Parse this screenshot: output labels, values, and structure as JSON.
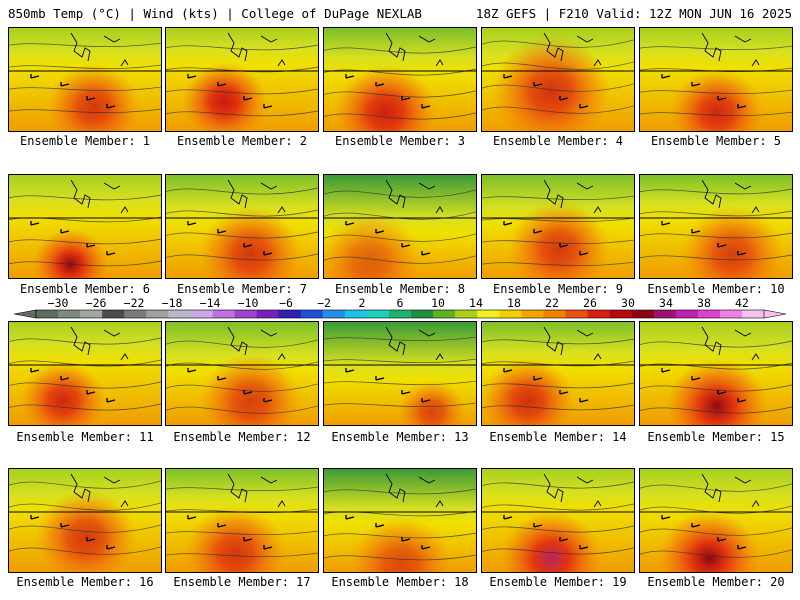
{
  "header": {
    "left": "850mb Temp (°C) | Wind (kts) | College of DuPage NEXLAB",
    "right": "18Z GEFS | F210 Valid: 12Z MON JUN 16 2025"
  },
  "chart_data": {
    "type": "heatmap",
    "panel_label_prefix": "Ensemble Member:",
    "members": [
      {
        "id": 1,
        "label": "Ensemble Member: 1"
      },
      {
        "id": 2,
        "label": "Ensemble Member: 2"
      },
      {
        "id": 3,
        "label": "Ensemble Member: 3"
      },
      {
        "id": 4,
        "label": "Ensemble Member: 4"
      },
      {
        "id": 5,
        "label": "Ensemble Member: 5"
      },
      {
        "id": 6,
        "label": "Ensemble Member: 6"
      },
      {
        "id": 7,
        "label": "Ensemble Member: 7"
      },
      {
        "id": 8,
        "label": "Ensemble Member: 8"
      },
      {
        "id": 9,
        "label": "Ensemble Member: 9"
      },
      {
        "id": 10,
        "label": "Ensemble Member: 10"
      },
      {
        "id": 11,
        "label": "Ensemble Member: 11"
      },
      {
        "id": 12,
        "label": "Ensemble Member: 12"
      },
      {
        "id": 13,
        "label": "Ensemble Member: 13"
      },
      {
        "id": 14,
        "label": "Ensemble Member: 14"
      },
      {
        "id": 15,
        "label": "Ensemble Member: 15"
      },
      {
        "id": 16,
        "label": "Ensemble Member: 16"
      },
      {
        "id": 17,
        "label": "Ensemble Member: 17"
      },
      {
        "id": 18,
        "label": "Ensemble Member: 18"
      },
      {
        "id": 19,
        "label": "Ensemble Member: 19"
      },
      {
        "id": 20,
        "label": "Ensemble Member: 20"
      }
    ],
    "colorbar": {
      "unit": "°C",
      "min": -30,
      "max": 42,
      "step": 4,
      "tick_labels": [
        "-30",
        "-26",
        "-22",
        "-18",
        "-14",
        "-10",
        "-6",
        "-2",
        "2",
        "6",
        "10",
        "14",
        "18",
        "22",
        "26",
        "30",
        "34",
        "38",
        "42"
      ],
      "colors": [
        "#5e6e5e",
        "#7e8a7e",
        "#9ea89e",
        "#4a4a4a",
        "#7a7a7a",
        "#a0a0a0",
        "#b8b8c8",
        "#d0a8e8",
        "#c070e0",
        "#a040d0",
        "#7a20c0",
        "#3020b0",
        "#2050d8",
        "#2090e8",
        "#20c0e8",
        "#20d0b8",
        "#20b070",
        "#209040",
        "#60b020",
        "#a8d020",
        "#f0f020",
        "#f0d000",
        "#f0a800",
        "#f08000",
        "#e85010",
        "#d82010",
        "#b80810",
        "#900018",
        "#a01070",
        "#c020b0",
        "#e040d0",
        "#f080e8",
        "#f8c0f0"
      ]
    }
  }
}
